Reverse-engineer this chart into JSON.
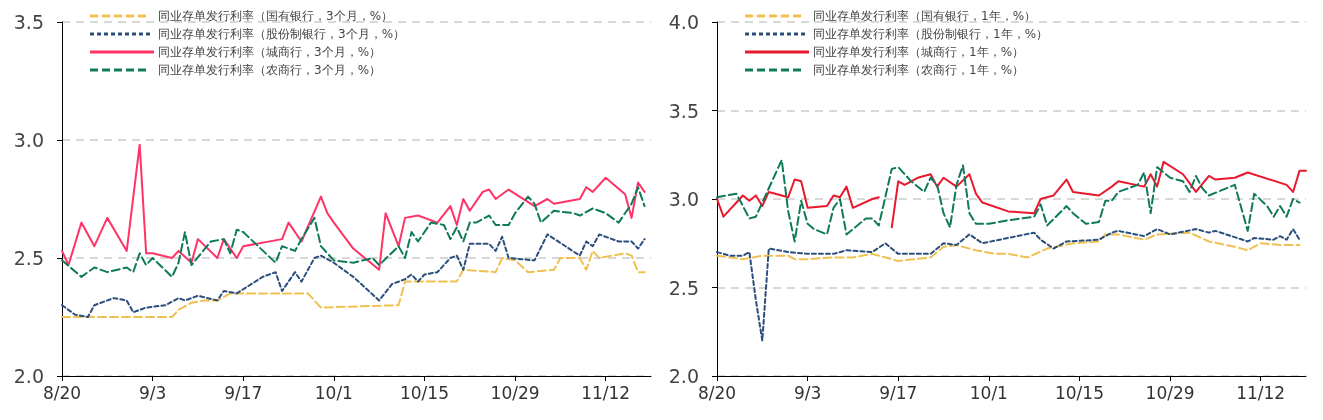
{
  "chart_data": [
    {
      "type": "line",
      "legend": "top left",
      "grid": "y",
      "marker": "none",
      "xlim": [
        "--08-20",
        "--11-19"
      ],
      "xticks": [
        {
          "value": "--08-20",
          "label": "8/20"
        },
        {
          "value": "--09-03",
          "label": "9/3"
        },
        {
          "value": "--09-17",
          "label": "9/17"
        },
        {
          "value": "--10-01",
          "label": "10/1"
        },
        {
          "value": "--10-15",
          "label": "10/15"
        },
        {
          "value": "--10-29",
          "label": "10/29"
        },
        {
          "value": "--11-12",
          "label": "11/12"
        }
      ],
      "ylim": [
        2,
        3.5
      ],
      "yticks": [
        {
          "value": 2,
          "label": "2.0"
        },
        {
          "value": 2.5,
          "label": "2.5"
        },
        {
          "value": 3,
          "label": "3.0"
        },
        {
          "value": 3.5,
          "label": "3.5"
        }
      ],
      "series": [
        {
          "name": "同业存单发行利率（国有银行，3个月，%）",
          "color": "#f0c050",
          "line_style": "dashed",
          "x": [
            "--08-20",
            "--09-06",
            "--09-07",
            "--09-09",
            "--09-11",
            "--09-13",
            "--09-15",
            "--09-27",
            "--09-29",
            "--10-11",
            "--10-12",
            "--10-20",
            "--10-21",
            "--10-26",
            "--10-27",
            "--10-29",
            "--10-31",
            "--11-04",
            "--11-05",
            "--11-08",
            "--11-09",
            "--11-10",
            "--11-11",
            "--11-15",
            "--11-16",
            "--11-17",
            "--11-18"
          ],
          "values": [
            2.25,
            2.25,
            2.28,
            2.31,
            2.32,
            2.32,
            2.35,
            2.35,
            2.29,
            2.3,
            2.4,
            2.4,
            2.45,
            2.44,
            2.5,
            2.49,
            2.44,
            2.45,
            2.5,
            2.5,
            2.45,
            2.53,
            2.5,
            2.52,
            2.51,
            2.44,
            2.44
          ]
        },
        {
          "name": "同业存单发行利率（股份制银行，3个月，%）",
          "color": "#2b4f7c",
          "line_style": "dotted",
          "x": [
            "--08-20",
            "--08-22",
            "--08-24",
            "--08-25",
            "--08-28",
            "--08-30",
            "--08-31",
            "--09-02",
            "--09-05",
            "--09-07",
            "--09-08",
            "--09-10",
            "--09-13",
            "--09-14",
            "--09-16",
            "--09-20",
            "--09-22",
            "--09-23",
            "--09-25",
            "--09-26",
            "--09-28",
            "--09-29",
            "--10-01",
            "--10-04",
            "--10-08",
            "--10-10",
            "--10-12",
            "--10-13",
            "--10-14",
            "--10-15",
            "--10-17",
            "--10-19",
            "--10-20",
            "--10-21",
            "--10-22",
            "--10-25",
            "--10-26",
            "--10-27",
            "--10-28",
            "--11-01",
            "--11-03",
            "--11-08",
            "--11-09",
            "--11-10",
            "--11-11",
            "--11-14",
            "--11-16",
            "--11-17",
            "--11-18"
          ],
          "values": [
            2.3,
            2.26,
            2.25,
            2.3,
            2.33,
            2.32,
            2.27,
            2.29,
            2.3,
            2.33,
            2.32,
            2.34,
            2.32,
            2.36,
            2.35,
            2.42,
            2.44,
            2.36,
            2.44,
            2.4,
            2.5,
            2.51,
            2.48,
            2.42,
            2.32,
            2.39,
            2.41,
            2.43,
            2.4,
            2.43,
            2.44,
            2.5,
            2.51,
            2.45,
            2.56,
            2.56,
            2.53,
            2.59,
            2.5,
            2.49,
            2.6,
            2.51,
            2.57,
            2.55,
            2.6,
            2.57,
            2.57,
            2.54,
            2.58
          ]
        },
        {
          "name": "同业存单发行利率（城商行，3个月，%）",
          "color": "#ff3366",
          "line_style": "solid",
          "x": [
            "--08-20",
            "--08-21",
            "--08-23",
            "--08-25",
            "--08-27",
            "--08-30",
            "--09-01",
            "--09-02",
            "--09-03",
            "--09-06",
            "--09-07",
            "--09-09",
            "--09-10",
            "--09-13",
            "--09-14",
            "--09-16",
            "--09-17",
            "--09-23",
            "--09-24",
            "--09-26",
            "--09-29",
            "--09-30",
            "--10-01",
            "--10-04",
            "--10-08",
            "--10-09",
            "--10-11",
            "--10-12",
            "--10-14",
            "--10-17",
            "--10-19",
            "--10-20",
            "--10-21",
            "--10-22",
            "--10-24",
            "--10-25",
            "--10-26",
            "--10-28",
            "--11-01",
            "--11-03",
            "--11-04",
            "--11-08",
            "--11-09",
            "--11-10",
            "--11-12",
            "--11-15",
            "--11-16",
            "--11-17",
            "--11-18"
          ],
          "values": [
            2.53,
            2.47,
            2.65,
            2.55,
            2.67,
            2.53,
            2.98,
            2.52,
            2.52,
            2.5,
            2.53,
            2.48,
            2.58,
            2.5,
            2.58,
            2.5,
            2.55,
            2.58,
            2.65,
            2.57,
            2.76,
            2.69,
            2.65,
            2.54,
            2.45,
            2.69,
            2.55,
            2.67,
            2.68,
            2.65,
            2.72,
            2.64,
            2.75,
            2.7,
            2.78,
            2.79,
            2.75,
            2.79,
            2.72,
            2.75,
            2.73,
            2.75,
            2.8,
            2.78,
            2.84,
            2.77,
            2.67,
            2.82,
            2.78
          ]
        },
        {
          "name": "同业存单发行利率（农商行，3个月，%）",
          "color": "#0f7a5a",
          "line_style": "dashed",
          "x": [
            "--08-20",
            "--08-23",
            "--08-25",
            "--08-27",
            "--08-30",
            "--08-31",
            "--09-01",
            "--09-02",
            "--09-03",
            "--09-06",
            "--09-07",
            "--09-08",
            "--09-09",
            "--09-12",
            "--09-14",
            "--09-15",
            "--09-16",
            "--09-17",
            "--09-22",
            "--09-23",
            "--09-25",
            "--09-26",
            "--09-28",
            "--09-29",
            "--10-01",
            "--10-04",
            "--10-07",
            "--10-08",
            "--10-11",
            "--10-12",
            "--10-13",
            "--10-14",
            "--10-16",
            "--10-18",
            "--10-19",
            "--10-20",
            "--10-21",
            "--10-22",
            "--10-23",
            "--10-25",
            "--10-26",
            "--10-28",
            "--10-29",
            "--10-31",
            "--11-01",
            "--11-02",
            "--11-04",
            "--11-07",
            "--11-08",
            "--11-10",
            "--11-12",
            "--11-14",
            "--11-16",
            "--11-17",
            "--11-18"
          ],
          "values": [
            2.49,
            2.42,
            2.46,
            2.44,
            2.46,
            2.44,
            2.52,
            2.47,
            2.5,
            2.42,
            2.48,
            2.61,
            2.47,
            2.57,
            2.58,
            2.52,
            2.62,
            2.61,
            2.48,
            2.55,
            2.53,
            2.58,
            2.67,
            2.55,
            2.49,
            2.48,
            2.5,
            2.47,
            2.55,
            2.5,
            2.61,
            2.57,
            2.65,
            2.64,
            2.58,
            2.63,
            2.57,
            2.65,
            2.65,
            2.68,
            2.64,
            2.64,
            2.69,
            2.76,
            2.73,
            2.65,
            2.7,
            2.69,
            2.68,
            2.71,
            2.69,
            2.65,
            2.73,
            2.8,
            2.72
          ]
        }
      ]
    },
    {
      "type": "line",
      "legend": "top left",
      "grid": "y",
      "marker": "none",
      "xlim": [
        "--08-20",
        "--11-19"
      ],
      "xticks": [
        {
          "value": "--08-20",
          "label": "8/20"
        },
        {
          "value": "--09-03",
          "label": "9/3"
        },
        {
          "value": "--09-17",
          "label": "9/17"
        },
        {
          "value": "--10-01",
          "label": "10/1"
        },
        {
          "value": "--10-15",
          "label": "10/15"
        },
        {
          "value": "--10-29",
          "label": "10/29"
        },
        {
          "value": "--11-12",
          "label": "11/12"
        }
      ],
      "ylim": [
        2,
        4
      ],
      "yticks": [
        {
          "value": 2,
          "label": "2.0"
        },
        {
          "value": 2.5,
          "label": "2.5"
        },
        {
          "value": 3,
          "label": "3.0"
        },
        {
          "value": 3.5,
          "label": "3.5"
        },
        {
          "value": 4,
          "label": "4.0"
        }
      ],
      "series": [
        {
          "name": "同业存单发行利率（国有银行，1年，%）",
          "color": "#f0c050",
          "line_style": "dashed",
          "x": [
            "--08-20",
            "--08-22",
            "--08-24",
            "--08-27",
            "--08-31",
            "--09-01",
            "--09-03",
            "--09-07",
            "--09-10",
            "--09-13",
            "--09-17",
            "--09-22",
            "--09-24",
            "--09-26",
            "--09-29",
            "--10-02",
            "--10-04",
            "--10-07",
            "--10-10",
            "--10-14",
            "--10-18",
            "--10-19",
            "--10-21",
            "--10-25",
            "--10-27",
            "--11-01",
            "--11-04",
            "--11-08",
            "--11-10",
            "--11-12",
            "--11-15",
            "--11-18"
          ],
          "values": [
            2.68,
            2.67,
            2.66,
            2.68,
            2.68,
            2.66,
            2.66,
            2.67,
            2.67,
            2.69,
            2.65,
            2.67,
            2.73,
            2.74,
            2.71,
            2.69,
            2.69,
            2.67,
            2.72,
            2.75,
            2.76,
            2.8,
            2.8,
            2.77,
            2.8,
            2.81,
            2.76,
            2.73,
            2.71,
            2.75,
            2.74,
            2.74
          ]
        },
        {
          "name": "同业存单发行利率（股份制银行，1年，%）",
          "color": "#2b4f7c",
          "line_style": "dotted",
          "x": [
            "--08-20",
            "--08-22",
            "--08-24",
            "--08-25",
            "--08-26",
            "--08-27",
            "--08-28",
            "--08-31",
            "--09-03",
            "--09-07",
            "--09-09",
            "--09-13",
            "--09-15",
            "--09-17",
            "--09-22",
            "--09-24",
            "--09-26",
            "--09-28",
            "--09-30",
            "--10-04",
            "--10-08",
            "--10-09",
            "--10-11",
            "--10-13",
            "--10-18",
            "--10-20",
            "--10-21",
            "--10-25",
            "--10-27",
            "--10-29",
            "--11-02",
            "--11-04",
            "--11-05",
            "--11-10",
            "--11-11",
            "--11-14",
            "--11-15",
            "--11-16",
            "--11-17",
            "--11-18"
          ],
          "values": [
            2.7,
            2.68,
            2.68,
            2.7,
            2.43,
            2.2,
            2.72,
            2.7,
            2.69,
            2.69,
            2.71,
            2.7,
            2.75,
            2.69,
            2.69,
            2.75,
            2.74,
            2.8,
            2.75,
            2.78,
            2.81,
            2.77,
            2.72,
            2.76,
            2.77,
            2.81,
            2.82,
            2.79,
            2.83,
            2.8,
            2.83,
            2.81,
            2.82,
            2.76,
            2.78,
            2.77,
            2.79,
            2.77,
            2.83,
            2.77
          ]
        },
        {
          "name": "同业存单发行利率（城商行，1年，%）",
          "color": "#e8192c",
          "line_style": "solid",
          "x": [
            "--08-20",
            "--08-21",
            "--08-24",
            "--08-25",
            "--08-26",
            "--08-27",
            "--08-28",
            "--08-31",
            "--09-01",
            "--09-02",
            "--09-03",
            "--09-06",
            "--09-07",
            "--09-08",
            "--09-09",
            "--09-10",
            "--09-13",
            "--09-14",
            "--09-15",
            "--09-16",
            "--09-17",
            "--09-18",
            "--09-20",
            "--09-22",
            "--09-23",
            "--09-24",
            "--09-26",
            "--09-28",
            "--09-29",
            "--09-30",
            "--10-04",
            "--10-08",
            "--10-09",
            "--10-11",
            "--10-13",
            "--10-14",
            "--10-18",
            "--10-20",
            "--10-21",
            "--10-25",
            "--10-26",
            "--10-27",
            "--10-28",
            "--10-31",
            "--11-02",
            "--11-04",
            "--11-05",
            "--11-08",
            "--11-10",
            "--11-16",
            "--11-17",
            "--11-18",
            "--11-19"
          ],
          "values": [
            3.0,
            2.9,
            3.02,
            2.99,
            3.02,
            2.96,
            3.04,
            3.01,
            3.11,
            3.1,
            2.95,
            2.96,
            3.02,
            3.01,
            3.07,
            2.95,
            3.0,
            3.01,
            null,
            2.84,
            3.1,
            3.08,
            3.12,
            3.14,
            3.07,
            3.12,
            3.07,
            3.14,
            3.03,
            2.98,
            2.93,
            2.92,
            3.0,
            3.02,
            3.11,
            3.04,
            3.02,
            3.07,
            3.1,
            3.07,
            3.14,
            3.07,
            3.21,
            3.14,
            3.04,
            3.13,
            3.11,
            3.12,
            3.15,
            3.08,
            3.04,
            3.16,
            3.16
          ]
        },
        {
          "name": "同业存单发行利率（农商行，1年，%）",
          "color": "#0f7a5a",
          "line_style": "dashed",
          "x": [
            "--08-20",
            "--08-23",
            "--08-25",
            "--08-26",
            "--08-29",
            "--08-30",
            "--08-31",
            "--09-01",
            "--09-02",
            "--09-03",
            "--09-04",
            "--09-06",
            "--09-07",
            "--09-08",
            "--09-09",
            "--09-12",
            "--09-13",
            "--09-14",
            "--09-16",
            "--09-17",
            "--09-19",
            "--09-21",
            "--09-22",
            "--09-23",
            "--09-24",
            "--09-25",
            "--09-26",
            "--09-27",
            "--09-28",
            "--09-29",
            "--10-01",
            "--10-04",
            "--10-08",
            "--10-09",
            "--10-10",
            "--10-13",
            "--10-14",
            "--10-16",
            "--10-18",
            "--10-19",
            "--10-20",
            "--10-21",
            "--10-24",
            "--10-25",
            "--10-26",
            "--10-27",
            "--10-29",
            "--10-31",
            "--11-01",
            "--11-02",
            "--11-03",
            "--11-04",
            "--11-08",
            "--11-10",
            "--11-11",
            "--11-13",
            "--11-14",
            "--11-15",
            "--11-16",
            "--11-17",
            "--11-18"
          ],
          "values": [
            3.01,
            3.03,
            2.89,
            2.9,
            3.14,
            3.22,
            2.93,
            2.76,
            2.99,
            2.86,
            2.83,
            2.8,
            2.95,
            3.0,
            2.8,
            2.89,
            2.89,
            2.85,
            3.17,
            3.18,
            3.1,
            3.04,
            3.12,
            3.08,
            2.92,
            2.84,
            3.08,
            3.19,
            2.92,
            2.86,
            2.86,
            2.88,
            2.9,
            2.97,
            2.85,
            2.96,
            2.92,
            2.86,
            2.87,
            2.99,
            2.99,
            3.04,
            3.08,
            3.15,
            2.92,
            3.18,
            3.12,
            3.1,
            3.04,
            3.13,
            3.06,
            3.02,
            3.08,
            2.82,
            3.03,
            2.96,
            2.9,
            2.96,
            2.9,
            3.0,
            2.98
          ]
        }
      ]
    }
  ]
}
